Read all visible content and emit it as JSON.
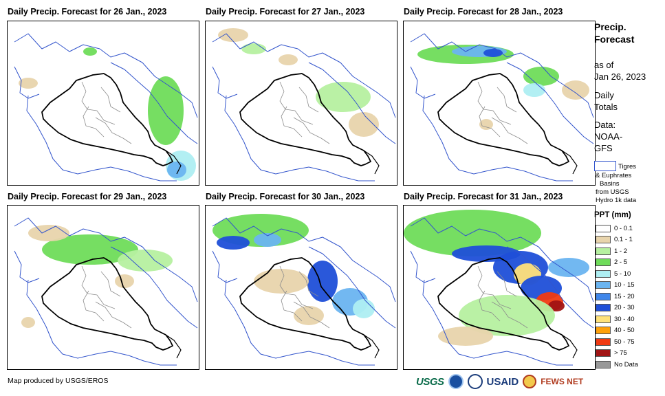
{
  "panels": [
    {
      "title": "Daily Precip. Forecast for 26 Jan., 2023",
      "day": 0
    },
    {
      "title": "Daily Precip. Forecast for 27 Jan., 2023",
      "day": 1
    },
    {
      "title": "Daily Precip. Forecast for 28 Jan., 2023",
      "day": 2
    },
    {
      "title": "Daily Precip. Forecast for 29 Jan., 2023",
      "day": 3
    },
    {
      "title": "Daily Precip. Forecast for 30 Jan., 2023",
      "day": 4
    },
    {
      "title": "Daily Precip. Forecast for 31 Jan., 2023",
      "day": 5
    }
  ],
  "sidebar": {
    "title_line1": "Precip.",
    "title_line2": "Forecast",
    "asof_line1": "as of",
    "asof_line2": "Jan 26, 2023",
    "totals_line1": "Daily",
    "totals_line2": "Totals",
    "data_line1": "Data:",
    "data_line2": "NOAA-",
    "data_line3": "GFS"
  },
  "basin_legend": {
    "line1": "Tigres",
    "line2": "& Euphrates",
    "line3": "Basins",
    "line4": "from USGS",
    "line5": "Hydro 1k data",
    "color": "#3355cc"
  },
  "ppt_legend": {
    "title": "PPT (mm)",
    "classes": [
      {
        "label": "0 - 0.1",
        "color": "#ffffff"
      },
      {
        "label": "0.1 - 1",
        "color": "#e8d4ac"
      },
      {
        "label": "1 - 2",
        "color": "#b6f0a0"
      },
      {
        "label": "2 - 5",
        "color": "#6fdc5a"
      },
      {
        "label": "5 - 10",
        "color": "#aeeef2"
      },
      {
        "label": "10 - 15",
        "color": "#6ab4f0"
      },
      {
        "label": "15 - 20",
        "color": "#3f86ea"
      },
      {
        "label": "20 - 30",
        "color": "#1f4fd8"
      },
      {
        "label": "30 - 40",
        "color": "#ffe27a"
      },
      {
        "label": "40 - 50",
        "color": "#ffa10a"
      },
      {
        "label": "50 - 75",
        "color": "#f03a12"
      },
      {
        "label": "> 75",
        "color": "#a11414"
      },
      {
        "label": "No Data",
        "color": "#999999"
      }
    ]
  },
  "footer": {
    "credit": "Map produced by USGS/EROS",
    "logo_usgs": "USGS",
    "logo_usaid": "USAID",
    "logo_fews": "FEWS NET"
  }
}
